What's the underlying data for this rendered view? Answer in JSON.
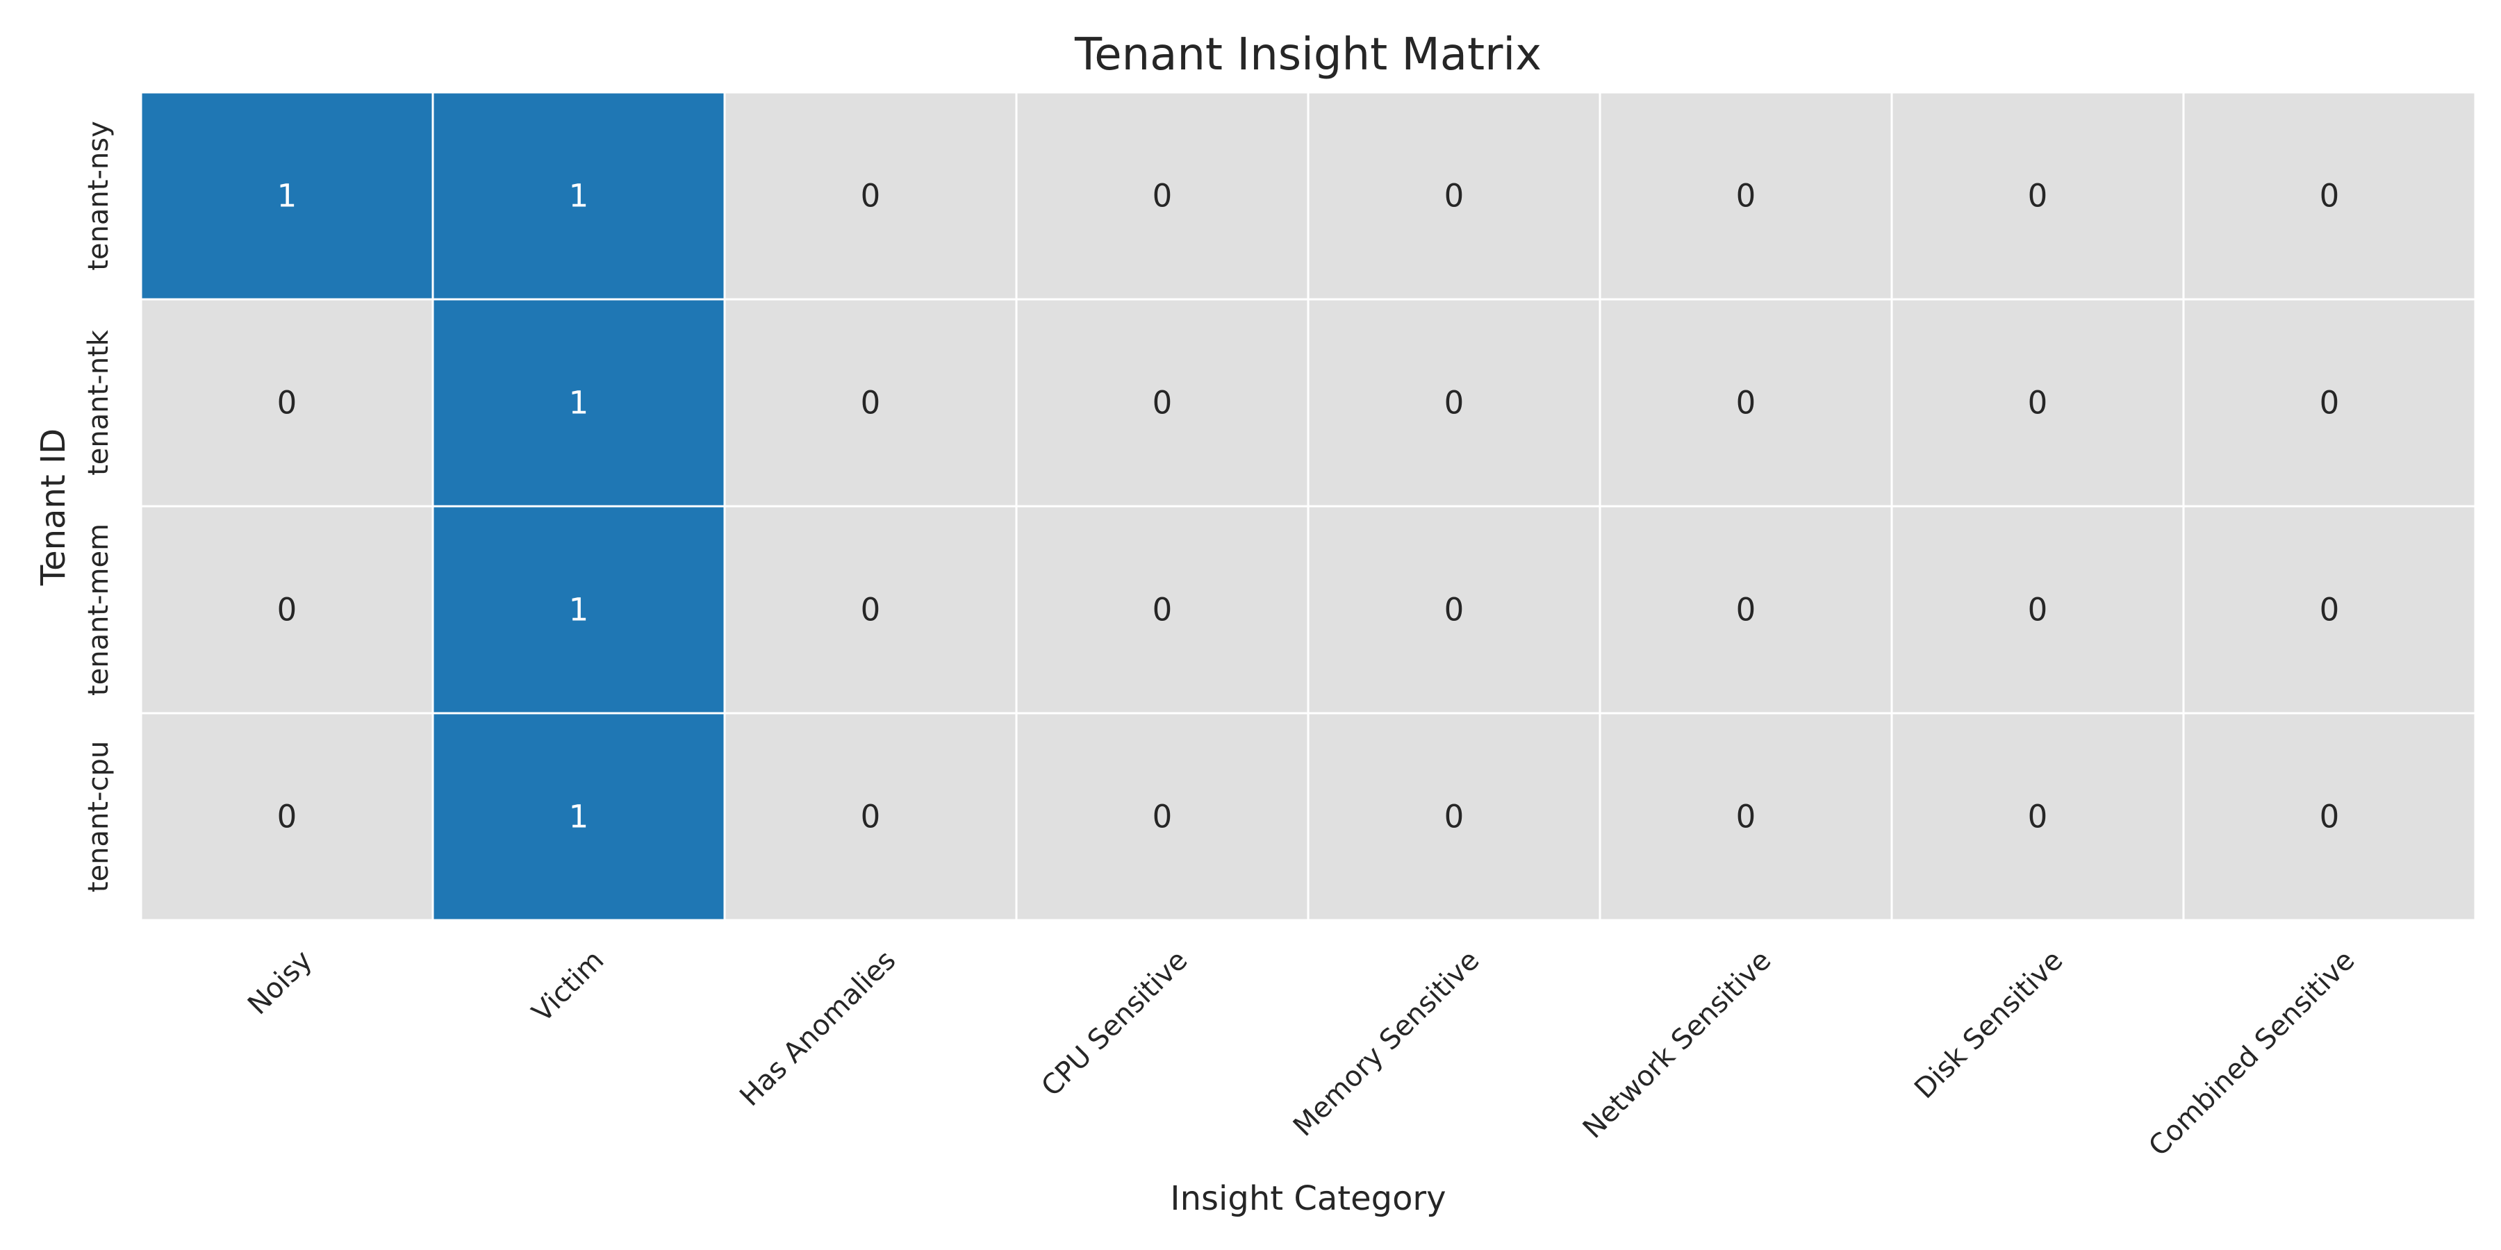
{
  "chart_data": {
    "type": "heatmap",
    "title": "Tenant Insight Matrix",
    "xlabel": "Insight Category",
    "ylabel": "Tenant ID",
    "columns": [
      "Noisy",
      "Victim",
      "Has Anomalies",
      "CPU Sensitive",
      "Memory Sensitive",
      "Network Sensitive",
      "Disk Sensitive",
      "Combined Sensitive"
    ],
    "rows": [
      "tenant-nsy",
      "tenant-ntk",
      "tenant-mem",
      "tenant-cpu"
    ],
    "values": [
      [
        1,
        1,
        0,
        0,
        0,
        0,
        0,
        0
      ],
      [
        0,
        1,
        0,
        0,
        0,
        0,
        0,
        0
      ],
      [
        0,
        1,
        0,
        0,
        0,
        0,
        0,
        0
      ],
      [
        0,
        1,
        0,
        0,
        0,
        0,
        0,
        0
      ]
    ],
    "colorscale": {
      "0": "#e0e0e0",
      "1": "#1f77b4"
    },
    "annotation_colors": {
      "0": "#262626",
      "1": "#ffffff"
    },
    "colorbar": false
  }
}
